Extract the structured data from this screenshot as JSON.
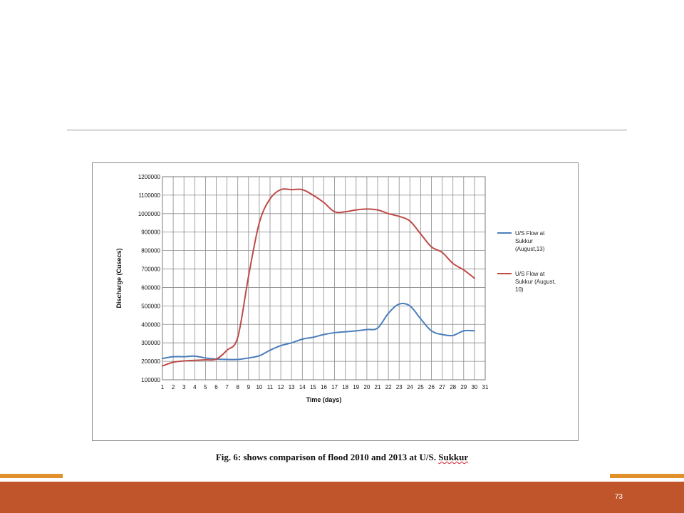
{
  "slide": {
    "page_number": "73",
    "caption_prefix": "Fig. 6: shows comparison of flood 2010 and 2013 at U/S. ",
    "caption_suffix": "Sukkur",
    "accent_color": "#c0542b",
    "stripe_color": "#e2902c"
  },
  "chart_data": {
    "type": "line",
    "title": "",
    "xlabel": "Time (days)",
    "ylabel": "Discharge (Cusecs)",
    "x": [
      1,
      2,
      3,
      4,
      5,
      6,
      7,
      8,
      9,
      10,
      11,
      12,
      13,
      14,
      15,
      16,
      17,
      18,
      19,
      20,
      21,
      22,
      23,
      24,
      25,
      26,
      27,
      28,
      29,
      30
    ],
    "xticks": [
      "1",
      "2",
      "3",
      "4",
      "5",
      "6",
      "7",
      "8",
      "9",
      "10",
      "11",
      "12",
      "13",
      "14",
      "15",
      "16",
      "17",
      "18",
      "19",
      "20",
      "21",
      "22",
      "23",
      "24",
      "25",
      "26",
      "27",
      "28",
      "29",
      "30",
      "31"
    ],
    "xlim": [
      1,
      31
    ],
    "ylim": [
      100000,
      1200000
    ],
    "yticks": [
      "100000",
      "200000",
      "300000",
      "400000",
      "500000",
      "600000",
      "700000",
      "800000",
      "900000",
      "1000000",
      "1100000",
      "1200000"
    ],
    "grid": true,
    "legend_position": "right",
    "series": [
      {
        "name": "U/S Flow at Sukkur (August,13)",
        "legend_lines": [
          "U/S Flow at",
          "Sukkur",
          "(August,13)"
        ],
        "color": "#4a7ebb",
        "values": [
          215000,
          225000,
          225000,
          228000,
          218000,
          212000,
          210000,
          210000,
          218000,
          230000,
          260000,
          285000,
          300000,
          320000,
          330000,
          345000,
          355000,
          360000,
          365000,
          372000,
          380000,
          460000,
          510000,
          500000,
          430000,
          365000,
          345000,
          340000,
          365000,
          365000
        ]
      },
      {
        "name": "U/S Flow at Sukkur (August, 10)",
        "legend_lines": [
          "U/S Flow at",
          "Sukkur (August,",
          "10)"
        ],
        "color": "#be4b48",
        "values": [
          175000,
          195000,
          202000,
          205000,
          208000,
          212000,
          260000,
          330000,
          660000,
          950000,
          1080000,
          1130000,
          1130000,
          1130000,
          1100000,
          1060000,
          1010000,
          1010000,
          1020000,
          1025000,
          1020000,
          1000000,
          985000,
          960000,
          890000,
          820000,
          790000,
          730000,
          695000,
          650000
        ]
      }
    ]
  }
}
